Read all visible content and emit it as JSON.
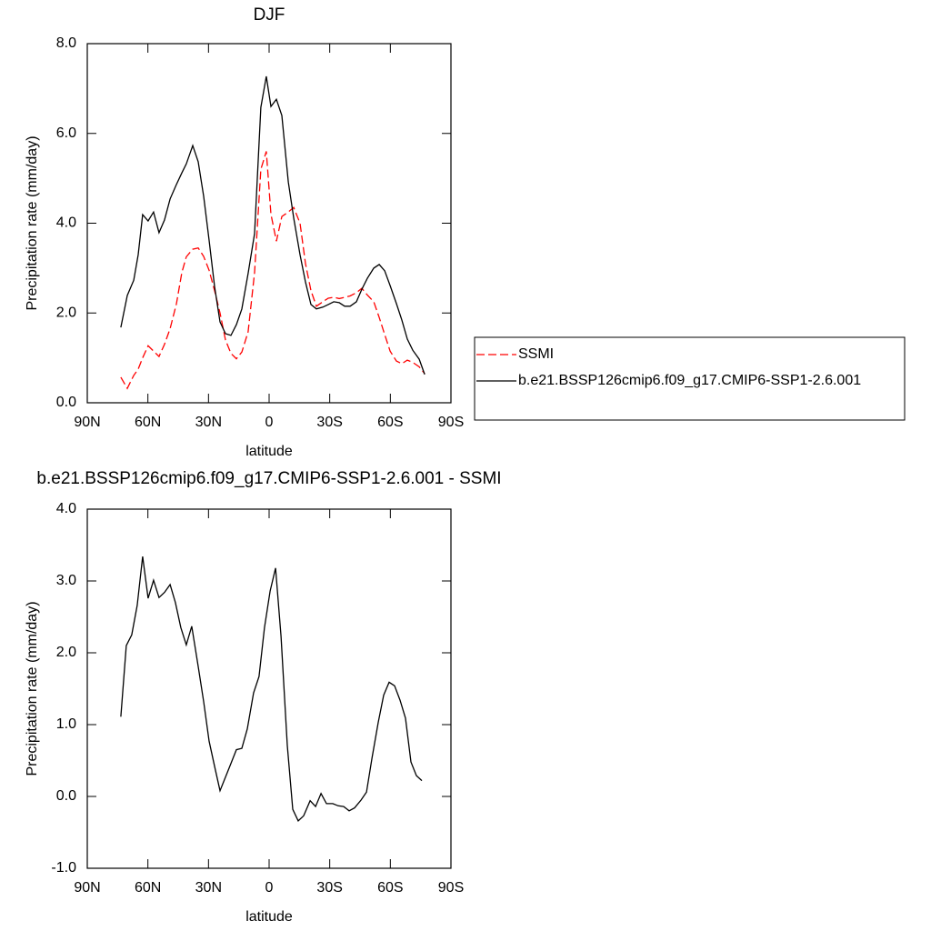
{
  "chart_data": [
    {
      "type": "line",
      "title": "DJF",
      "xlabel": "latitude",
      "ylabel": "Precipitation rate (mm/day)",
      "x": [
        73.4,
        70.2,
        67.0,
        64.8,
        62.6,
        59.9,
        57.2,
        54.5,
        51.8,
        49.0,
        45.9,
        43.2,
        41.0,
        37.8,
        35.1,
        32.4,
        29.7,
        27.0,
        24.3,
        21.6,
        18.9,
        16.2,
        13.5,
        10.4,
        7.2,
        4.1,
        1.4,
        -0.9,
        -3.6,
        -6.3,
        -9.5,
        -12.2,
        -15.3,
        -18.0,
        -20.7,
        -23.4,
        -26.6,
        -29.3,
        -32.0,
        -34.7,
        -37.4,
        -40.1,
        -43.2,
        -45.9,
        -48.6,
        -51.8,
        -54.5,
        -57.2,
        -59.9,
        -63.0,
        -65.7,
        -68.4,
        -71.1,
        -74.3,
        -77.0
      ],
      "series": [
        {
          "name": "SSMI",
          "color": "#ff0000",
          "line_style": "dashed",
          "values": [
            0.57,
            0.32,
            0.61,
            0.75,
            1.0,
            1.27,
            1.15,
            1.03,
            1.3,
            1.65,
            2.2,
            2.9,
            3.25,
            3.42,
            3.45,
            3.26,
            2.95,
            2.5,
            2.0,
            1.4,
            1.1,
            0.98,
            1.13,
            1.58,
            2.9,
            5.2,
            5.6,
            4.2,
            3.6,
            4.15,
            4.25,
            4.35,
            4.0,
            3.1,
            2.5,
            2.15,
            2.25,
            2.33,
            2.35,
            2.32,
            2.35,
            2.38,
            2.45,
            2.55,
            2.4,
            2.25,
            1.9,
            1.52,
            1.15,
            0.93,
            0.87,
            0.95,
            0.9,
            0.8,
            0.65
          ]
        },
        {
          "name": "b.e21.BSSP126cmip6.f09_g17.CMIP6-SSP1-2.6.001",
          "color": "#000000",
          "line_style": "solid",
          "values": [
            1.68,
            2.39,
            2.73,
            3.3,
            4.19,
            4.05,
            4.25,
            3.79,
            4.07,
            4.54,
            4.86,
            5.12,
            5.32,
            5.73,
            5.37,
            4.6,
            3.62,
            2.59,
            1.8,
            1.54,
            1.5,
            1.74,
            2.09,
            2.88,
            3.77,
            6.58,
            7.27,
            6.6,
            6.76,
            6.4,
            4.92,
            4.11,
            3.3,
            2.69,
            2.19,
            2.09,
            2.13,
            2.19,
            2.25,
            2.23,
            2.15,
            2.15,
            2.25,
            2.53,
            2.77,
            3.0,
            3.08,
            2.94,
            2.61,
            2.21,
            1.84,
            1.42,
            1.17,
            0.97,
            0.63
          ]
        }
      ],
      "xlim": [
        90,
        -90
      ],
      "xticks": [
        {
          "value": 90,
          "label": "90N"
        },
        {
          "value": 60,
          "label": "60N"
        },
        {
          "value": 30,
          "label": "30N"
        },
        0,
        {
          "value": -30,
          "label": "30S"
        },
        {
          "value": -60,
          "label": "60S"
        },
        {
          "value": -90,
          "label": "90S"
        }
      ],
      "ylim": [
        0,
        8
      ],
      "yticks": [
        {
          "value": 0,
          "label": "0.0"
        },
        {
          "value": 2,
          "label": "2.0"
        },
        {
          "value": 4,
          "label": "4.0"
        },
        {
          "value": 6,
          "label": "6.0"
        },
        {
          "value": 8,
          "label": "8.0"
        }
      ],
      "legend": "right"
    },
    {
      "type": "line",
      "title": "b.e21.BSSP126cmip6.f09_g17.CMIP6-SSP1-2.6.001 - SSMI",
      "xlabel": "latitude",
      "ylabel": "Precipitation rate (mm/day)",
      "x": [
        73.4,
        70.7,
        68.0,
        65.3,
        62.6,
        59.9,
        57.2,
        54.5,
        51.8,
        49.0,
        46.4,
        43.7,
        41.0,
        38.3,
        35.1,
        32.4,
        29.7,
        27.0,
        24.3,
        21.6,
        18.9,
        16.2,
        13.5,
        10.8,
        7.7,
        5.0,
        2.3,
        -0.5,
        -3.2,
        -5.9,
        -9.0,
        -11.7,
        -14.4,
        -17.1,
        -20.3,
        -23.0,
        -25.7,
        -28.4,
        -31.5,
        -34.2,
        -36.9,
        -39.6,
        -42.3,
        -45.5,
        -48.2,
        -50.9,
        -54.0,
        -56.7,
        -59.4,
        -62.1,
        -64.8,
        -67.5,
        -70.2,
        -72.9,
        -75.6
      ],
      "series": [
        {
          "color": "#000000",
          "line_style": "solid",
          "values": [
            1.11,
            2.1,
            2.25,
            2.66,
            3.34,
            2.76,
            3.01,
            2.77,
            2.84,
            2.95,
            2.7,
            2.35,
            2.11,
            2.37,
            1.81,
            1.32,
            0.77,
            0.42,
            0.08,
            0.27,
            0.46,
            0.65,
            0.67,
            0.94,
            1.44,
            1.67,
            2.35,
            2.86,
            3.18,
            2.23,
            0.71,
            -0.18,
            -0.34,
            -0.27,
            -0.06,
            -0.14,
            0.04,
            -0.1,
            -0.1,
            -0.13,
            -0.14,
            -0.2,
            -0.16,
            -0.05,
            0.06,
            0.53,
            1.03,
            1.41,
            1.59,
            1.54,
            1.34,
            1.09,
            0.48,
            0.29,
            0.22
          ]
        }
      ],
      "xlim": [
        90,
        -90
      ],
      "xticks": [
        {
          "value": 90,
          "label": "90N"
        },
        {
          "value": 60,
          "label": "60N"
        },
        {
          "value": 30,
          "label": "30N"
        },
        0,
        {
          "value": -30,
          "label": "30S"
        },
        {
          "value": -60,
          "label": "60S"
        },
        {
          "value": -90,
          "label": "90S"
        }
      ],
      "ylim": [
        -1,
        4
      ],
      "yticks": [
        {
          "value": -1,
          "label": "-1.0"
        },
        {
          "value": 0,
          "label": "0.0"
        },
        {
          "value": 1,
          "label": "1.0"
        },
        {
          "value": 2,
          "label": "2.0"
        },
        {
          "value": 3,
          "label": "3.0"
        },
        {
          "value": 4,
          "label": "4.0"
        }
      ]
    }
  ]
}
